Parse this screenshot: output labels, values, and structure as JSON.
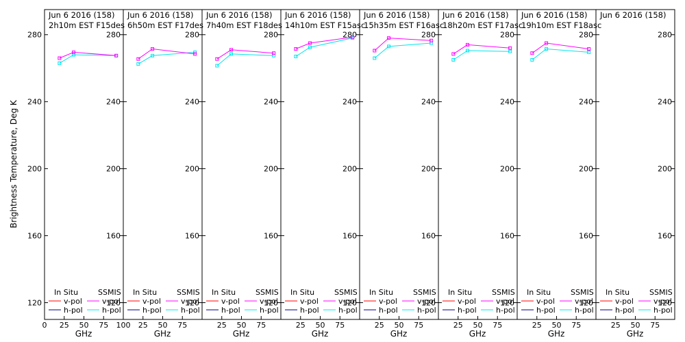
{
  "ylabel": "Brightness Temperature, Deg K",
  "xlabel": "GHz",
  "legend": {
    "in_situ": "In Situ",
    "ssmis": "SSMIS",
    "v_pol": "v-pol",
    "h_pol": "h-pol"
  },
  "colors": {
    "in_situ_v": "#ff0000",
    "in_situ_h": "#000080",
    "ssmis_v": "#ff00ff",
    "ssmis_h": "#00e5ee",
    "axis": "#000000"
  },
  "chart_data": {
    "type": "line",
    "ylim": [
      110,
      295
    ],
    "xlim": [
      0,
      100
    ],
    "yticks": [
      120,
      160,
      200,
      240,
      280
    ],
    "xticks": [
      "0",
      "25",
      "50",
      "75",
      "100"
    ],
    "xticks_inner": [
      "25",
      "50",
      "75"
    ],
    "grid": false,
    "legend_position": "bottom",
    "panels": [
      {
        "title1": "Jun  6 2016 (158)",
        "title2": "2h10m  EST  F15des",
        "ssmis_v": [
          [
            19,
            266
          ],
          [
            37,
            269.5
          ],
          [
            91,
            267.5
          ]
        ],
        "ssmis_h": [
          [
            19,
            263
          ],
          [
            37,
            268
          ],
          [
            91,
            267.5
          ]
        ]
      },
      {
        "title1": "Jun  6 2016 (158)",
        "title2": "6h50m  EST  F17des",
        "ssmis_v": [
          [
            19,
            265.5
          ],
          [
            37,
            271.5
          ],
          [
            91,
            268.5
          ]
        ],
        "ssmis_h": [
          [
            19,
            262.5
          ],
          [
            37,
            267.5
          ],
          [
            91,
            269.5
          ]
        ]
      },
      {
        "title1": "Jun  6 2016 (158)",
        "title2": "7h40m  EST  F18des",
        "ssmis_v": [
          [
            19,
            265.5
          ],
          [
            37,
            271
          ],
          [
            91,
            269
          ]
        ],
        "ssmis_h": [
          [
            19,
            261.5
          ],
          [
            37,
            268.5
          ],
          [
            91,
            267.5
          ]
        ]
      },
      {
        "title1": "Jun  6 2016 (158)",
        "title2": "14h10m  EST  F15asc",
        "ssmis_v": [
          [
            19,
            271.5
          ],
          [
            37,
            275
          ],
          [
            91,
            278.5
          ]
        ],
        "ssmis_h": [
          [
            19,
            267
          ],
          [
            37,
            272.5
          ],
          [
            91,
            278
          ]
        ]
      },
      {
        "title1": "Jun  6 2016 (158)",
        "title2": "15h35m  EST  F16asc",
        "ssmis_v": [
          [
            19,
            270.5
          ],
          [
            37,
            278
          ],
          [
            91,
            276.5
          ]
        ],
        "ssmis_h": [
          [
            19,
            266
          ],
          [
            37,
            273
          ],
          [
            91,
            275
          ]
        ]
      },
      {
        "title1": "Jun  6 2016 (158)",
        "title2": "18h20m  EST  F17asc",
        "ssmis_v": [
          [
            19,
            268.5
          ],
          [
            37,
            274
          ],
          [
            91,
            272
          ]
        ],
        "ssmis_h": [
          [
            19,
            265
          ],
          [
            37,
            270.5
          ],
          [
            91,
            270
          ]
        ]
      },
      {
        "title1": "Jun  6 2016 (158)",
        "title2": "19h10m  EST  F18asc",
        "ssmis_v": [
          [
            19,
            269
          ],
          [
            37,
            275
          ],
          [
            91,
            271.5
          ]
        ],
        "ssmis_h": [
          [
            19,
            265
          ],
          [
            37,
            271.5
          ],
          [
            91,
            269.5
          ]
        ]
      },
      {
        "title1": "Jun  6 2016 (158)",
        "title2": "",
        "ssmis_v": [],
        "ssmis_h": []
      }
    ]
  }
}
